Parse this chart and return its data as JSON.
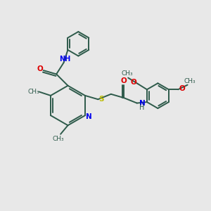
{
  "background_color": "#e8e8e8",
  "bond_color": "#2d5a4a",
  "N_color": "#0000ee",
  "O_color": "#dd0000",
  "S_color": "#bbbb00",
  "bond_width": 1.4,
  "figsize": [
    3.0,
    3.0
  ],
  "dpi": 100,
  "xlim": [
    0,
    10
  ],
  "ylim": [
    0,
    10
  ]
}
